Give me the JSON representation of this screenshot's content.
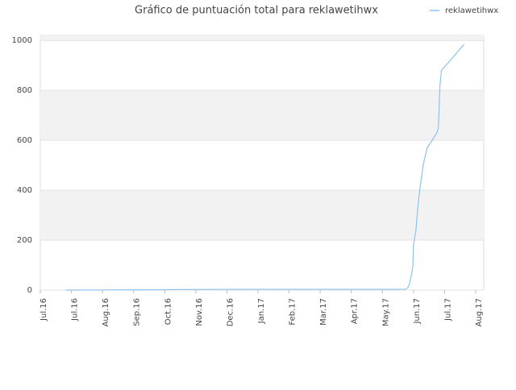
{
  "chart_data": {
    "type": "line",
    "title": "Gráfico de puntuación total para reklawetihwx",
    "x": [
      0.83,
      6.3,
      11.74,
      11.82,
      11.87,
      11.93,
      11.98,
      12.0,
      12.08,
      12.13,
      12.2,
      12.31,
      12.44,
      12.6,
      12.75,
      12.8,
      12.83,
      12.85,
      12.9,
      13.63
    ],
    "series": [
      {
        "name": "reklawetihwx",
        "color": "#8ec3ee",
        "values": [
          0,
          3,
          3,
          10,
          25,
          60,
          95,
          180,
          240,
          320,
          400,
          500,
          570,
          600,
          630,
          650,
          750,
          820,
          880,
          985
        ]
      }
    ],
    "xlim": [
      0,
      14
    ],
    "xticks": [
      {
        "value": 0,
        "label": "Jul.16"
      },
      {
        "value": 1,
        "label": "Jul.16"
      },
      {
        "value": 2,
        "label": "Aug.16"
      },
      {
        "value": 3,
        "label": "Sep.16"
      },
      {
        "value": 4,
        "label": "Oct.16"
      },
      {
        "value": 5,
        "label": "Nov.16"
      },
      {
        "value": 6,
        "label": "Dec.16"
      },
      {
        "value": 7,
        "label": "Jan.17"
      },
      {
        "value": 8,
        "label": "Feb.17"
      },
      {
        "value": 9,
        "label": "Mar.17"
      },
      {
        "value": 10,
        "label": "Apr.17"
      },
      {
        "value": 11,
        "label": "May.17"
      },
      {
        "value": 12,
        "label": "Jun.17"
      },
      {
        "value": 13,
        "label": "Jul.17"
      },
      {
        "value": 14,
        "label": "Aug.17"
      }
    ],
    "ylim": [
      0,
      1020
    ],
    "yticks": [
      0,
      200,
      400,
      600,
      800,
      1000
    ],
    "grid": true,
    "legend": "top-right"
  }
}
